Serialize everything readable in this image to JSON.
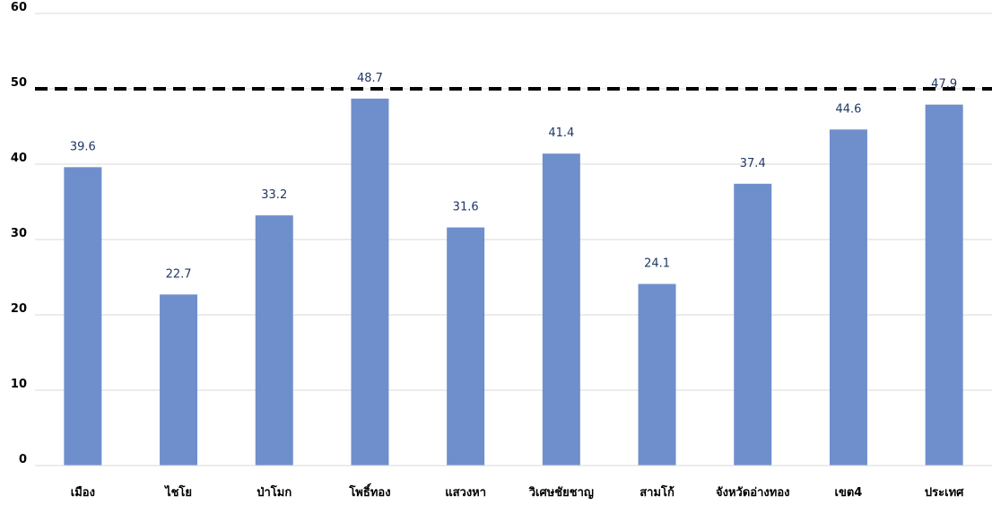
{
  "chart_data": {
    "type": "bar",
    "categories": [
      "เมือง",
      "ไชโย",
      "ป่าโมก",
      "โพธิ์ทอง",
      "แสวงหา",
      "วิเศษชัยชาญ",
      "สามโก้",
      "จังหวัดอ่างทอง",
      "เขต4",
      "ประเทศ"
    ],
    "values": [
      39.6,
      22.7,
      33.2,
      48.7,
      31.6,
      41.4,
      24.1,
      37.4,
      44.6,
      47.9
    ],
    "value_labels": [
      "39.6",
      "22.7",
      "33.2",
      "48.7",
      "31.6",
      "41.4",
      "24.1",
      "37.4",
      "44.6",
      "47.9"
    ],
    "yticks": [
      "0",
      "10",
      "20",
      "30",
      "40",
      "50",
      "60"
    ],
    "ylim": [
      0,
      60
    ],
    "reference_line": 50,
    "grid": true,
    "colors": {
      "bar": "#6f8fcc",
      "gridline": "#d9d9d9",
      "reference_line": "#000000",
      "data_label": "#1f3864"
    }
  }
}
